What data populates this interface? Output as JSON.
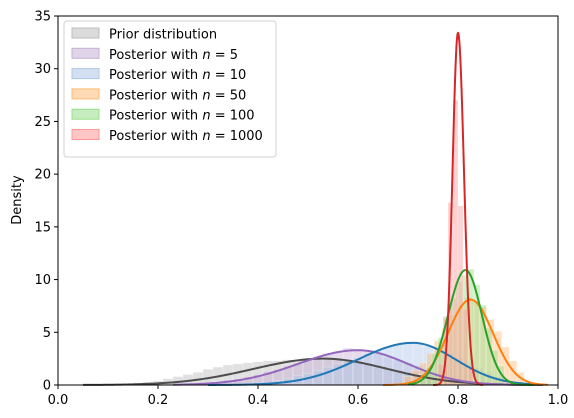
{
  "chart_data": {
    "type": "area",
    "xlabel": "",
    "ylabel": "Density",
    "xlim": [
      0.0,
      1.0
    ],
    "ylim": [
      0,
      35
    ],
    "xticks": [
      0.0,
      0.2,
      0.4,
      0.6,
      0.8,
      1.0
    ],
    "yticks": [
      0,
      5,
      10,
      15,
      20,
      25,
      30,
      35
    ],
    "x_tick_labels": [
      "0.0",
      "0.2",
      "0.4",
      "0.6",
      "0.8",
      "1.0"
    ],
    "y_tick_labels": [
      "0",
      "5",
      "10",
      "15",
      "20",
      "25",
      "30",
      "35"
    ],
    "grid": false,
    "legend_placement": "top-left",
    "series": [
      {
        "name": "Prior distribution",
        "fill": "#bdbdbd",
        "line": "#4d4d4d",
        "mode": "skewnormal",
        "center": 0.53,
        "sd_left": 0.14,
        "sd_right": 0.13,
        "peak": 2.5,
        "xmin": 0.05,
        "xmax": 0.97
      },
      {
        "name": "Posterior with n = 5",
        "fill": "#c5b0d5",
        "line": "#9467bd",
        "mode": "skewnormal",
        "center": 0.6,
        "sd_left": 0.12,
        "sd_right": 0.1,
        "peak": 3.3,
        "xmin": 0.23,
        "xmax": 0.93
      },
      {
        "name": "Posterior with n = 10",
        "fill": "#aec7e8",
        "line": "#1f77b4",
        "mode": "skewnormal",
        "center": 0.71,
        "sd_left": 0.11,
        "sd_right": 0.085,
        "peak": 4.0,
        "xmin": 0.3,
        "xmax": 0.97
      },
      {
        "name": "Posterior with n = 50",
        "fill": "#ffbb78",
        "line": "#ff7f0e",
        "mode": "skewnormal",
        "center": 0.825,
        "sd_left": 0.045,
        "sd_right": 0.045,
        "peak": 8.1,
        "xmin": 0.65,
        "xmax": 0.98
      },
      {
        "name": "Posterior with n = 100",
        "fill": "#98df8a",
        "line": "#2ca02c",
        "mode": "skewnormal",
        "center": 0.815,
        "sd_left": 0.035,
        "sd_right": 0.033,
        "peak": 10.9,
        "xmin": 0.7,
        "xmax": 0.95
      },
      {
        "name": "Posterior with n = 1000",
        "fill": "#ff9896",
        "line": "#d62728",
        "mode": "skewnormal",
        "center": 0.8,
        "sd_left": 0.011,
        "sd_right": 0.012,
        "peak": 33.4,
        "xmin": 0.75,
        "xmax": 0.85
      }
    ],
    "histograms": [
      {
        "series": "Prior distribution",
        "bin_width": 0.02,
        "x": [
          0.14,
          0.16,
          0.18,
          0.2,
          0.22,
          0.24,
          0.26,
          0.28,
          0.3,
          0.32,
          0.34,
          0.36,
          0.38,
          0.4,
          0.42,
          0.44,
          0.46,
          0.48,
          0.5,
          0.52,
          0.54,
          0.56,
          0.58,
          0.6,
          0.62,
          0.64,
          0.66,
          0.68,
          0.7,
          0.72,
          0.74,
          0.76,
          0.78,
          0.8,
          0.82,
          0.84,
          0.86,
          0.88
        ],
        "density": [
          0.1,
          0.2,
          0.3,
          0.4,
          0.6,
          0.8,
          1.0,
          1.2,
          1.5,
          1.7,
          1.9,
          2.0,
          2.1,
          2.2,
          2.3,
          2.3,
          2.4,
          2.4,
          2.5,
          2.4,
          2.5,
          2.4,
          2.3,
          2.2,
          2.0,
          1.8,
          1.6,
          1.4,
          1.2,
          1.0,
          0.8,
          0.6,
          0.4,
          0.3,
          0.2,
          0.15,
          0.1,
          0.05
        ]
      },
      {
        "series": "Posterior with n = 5",
        "bin_width": 0.02,
        "x": [
          0.3,
          0.32,
          0.34,
          0.36,
          0.38,
          0.4,
          0.42,
          0.44,
          0.46,
          0.48,
          0.5,
          0.52,
          0.54,
          0.56,
          0.58,
          0.6,
          0.62,
          0.64,
          0.66,
          0.68,
          0.7,
          0.72,
          0.74,
          0.76,
          0.78,
          0.8,
          0.82,
          0.84,
          0.86,
          0.88
        ],
        "density": [
          0.2,
          0.3,
          0.5,
          0.6,
          0.8,
          1.0,
          1.3,
          1.5,
          1.8,
          2.1,
          2.4,
          2.7,
          3.0,
          3.2,
          3.5,
          3.4,
          3.2,
          3.0,
          2.7,
          2.4,
          2.1,
          1.8,
          1.4,
          1.1,
          0.8,
          0.6,
          0.4,
          0.3,
          0.2,
          0.1
        ]
      },
      {
        "series": "Posterior with n = 10",
        "bin_width": 0.02,
        "x": [
          0.44,
          0.46,
          0.48,
          0.5,
          0.52,
          0.54,
          0.56,
          0.58,
          0.6,
          0.62,
          0.64,
          0.66,
          0.68,
          0.7,
          0.72,
          0.74,
          0.76,
          0.78,
          0.8,
          0.82,
          0.84,
          0.86,
          0.88,
          0.9
        ],
        "density": [
          0.4,
          0.6,
          0.9,
          1.1,
          1.4,
          1.7,
          2.0,
          2.3,
          2.6,
          3.0,
          3.3,
          3.6,
          3.9,
          4.0,
          3.9,
          3.7,
          3.4,
          3.0,
          2.6,
          2.1,
          1.6,
          1.2,
          0.8,
          0.4
        ]
      },
      {
        "series": "Posterior with n = 50",
        "bin_width": 0.015,
        "x": [
          0.7,
          0.715,
          0.73,
          0.745,
          0.76,
          0.775,
          0.79,
          0.805,
          0.82,
          0.835,
          0.85,
          0.865,
          0.88,
          0.895,
          0.91,
          0.925
        ],
        "density": [
          0.8,
          1.4,
          2.1,
          3.0,
          4.2,
          5.4,
          6.6,
          7.6,
          8.3,
          8.0,
          7.4,
          6.2,
          5.1,
          3.6,
          2.3,
          1.2
        ]
      },
      {
        "series": "Posterior with n = 100",
        "bin_width": 0.012,
        "x": [
          0.73,
          0.742,
          0.754,
          0.766,
          0.778,
          0.79,
          0.802,
          0.814,
          0.826,
          0.838,
          0.85,
          0.862,
          0.874,
          0.886
        ],
        "density": [
          1.0,
          1.7,
          3.0,
          4.5,
          6.3,
          8.2,
          9.8,
          10.4,
          11.0,
          9.5,
          7.6,
          5.4,
          3.3,
          1.8
        ]
      },
      {
        "series": "Posterior with n = 1000",
        "bin_width": 0.01,
        "x": [
          0.765,
          0.775,
          0.785,
          0.795,
          0.805,
          0.815,
          0.825
        ],
        "density": [
          2.0,
          6.5,
          17.3,
          27.0,
          17.0,
          7.2,
          1.6
        ]
      }
    ]
  },
  "legend": {
    "items": [
      {
        "prefix": "Prior distribution",
        "n": ""
      },
      {
        "prefix": "Posterior with ",
        "n": "5"
      },
      {
        "prefix": "Posterior with ",
        "n": "10"
      },
      {
        "prefix": "Posterior with ",
        "n": "50"
      },
      {
        "prefix": "Posterior with ",
        "n": "100"
      },
      {
        "prefix": "Posterior with ",
        "n": "1000"
      }
    ]
  }
}
